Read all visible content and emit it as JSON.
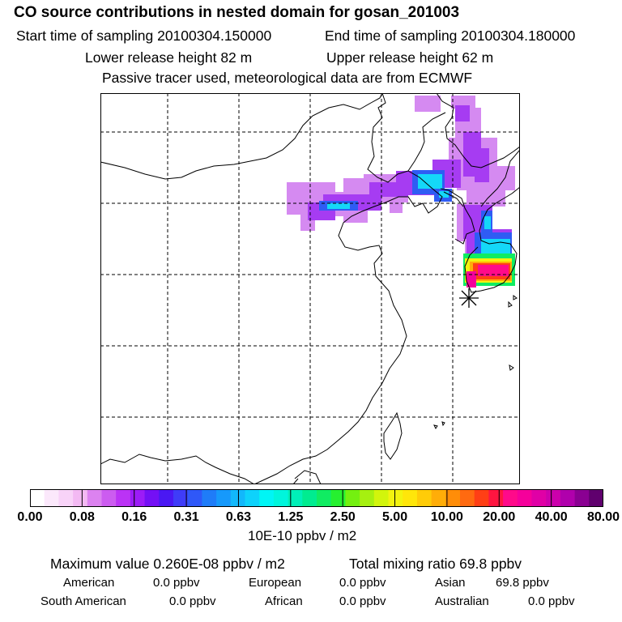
{
  "header": {
    "title": "CO  source contributions in nested domain for gosan_201003",
    "start_time": "Start time of sampling 20100304.150000",
    "end_time": "End time of sampling 20100304.180000",
    "lower_release": "Lower release height   82 m",
    "upper_release": "Upper release height   62 m",
    "tracer_note": "Passive tracer used, meteorological data are from ECMWF"
  },
  "colorbar": {
    "tick_labels": [
      "0.00",
      "0.08",
      "0.16",
      "0.31",
      "0.63",
      "1.25",
      "2.50",
      "5.00",
      "10.00",
      "20.00",
      "40.00",
      "80.00"
    ],
    "colors": [
      "#ffffff",
      "#fbe8fb",
      "#f8d3f8",
      "#f3b9f3",
      "#dc82f0",
      "#cc5cf0",
      "#bb33f5",
      "#9c1cf7",
      "#7410f5",
      "#4a18f3",
      "#3f3cf8",
      "#2f58f8",
      "#1f7cf8",
      "#1699fb",
      "#12b8fb",
      "#0ed2fb",
      "#00f5f5",
      "#00f5dc",
      "#00f0b8",
      "#00ec90",
      "#10ec62",
      "#26f030",
      "#74f010",
      "#a6f010",
      "#d2f50c",
      "#f3f30f",
      "#ffe60a",
      "#ffcc08",
      "#ffad08",
      "#ff8d08",
      "#ff6a10",
      "#ff3f15",
      "#ff1540",
      "#ff0a8a",
      "#f5009b",
      "#e000a6",
      "#cc00ac",
      "#b000ac",
      "#8a0092",
      "#60006e"
    ],
    "units": "10E-10 ppbv / m2"
  },
  "summary": {
    "max_value": "Maximum value  0.260E-08 ppbv / m2",
    "total_mixing": "Total mixing ratio       69.8 ppbv",
    "regions": [
      {
        "name": "American",
        "value": "0.0 ppbv"
      },
      {
        "name": "European",
        "value": "0.0 ppbv"
      },
      {
        "name": "Asian",
        "value": "69.8 ppbv"
      },
      {
        "name": "South American",
        "value": "0.0 ppbv"
      },
      {
        "name": "African",
        "value": "0.0 ppbv"
      },
      {
        "name": "Australian",
        "value": "0.0 ppbv"
      }
    ]
  }
}
